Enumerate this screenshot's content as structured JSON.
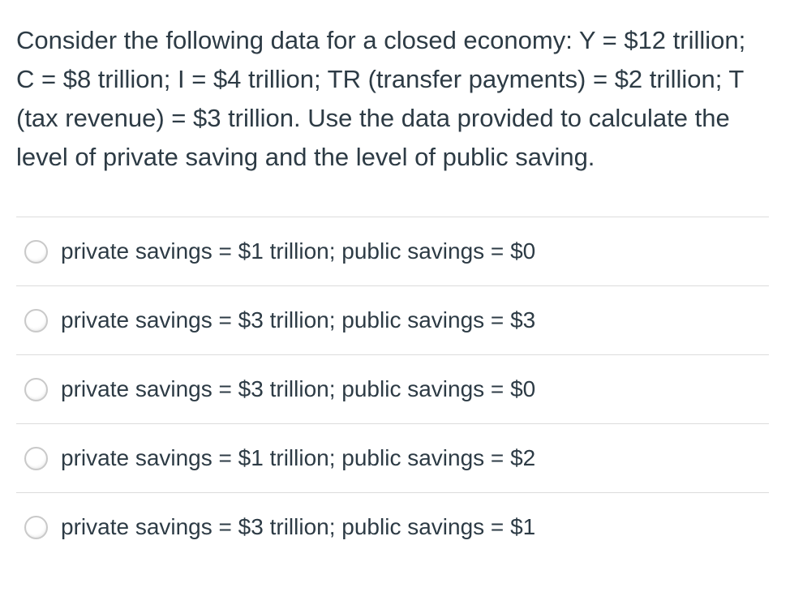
{
  "question": {
    "text": "Consider the following data for a closed economy: Y = $12 trillion; C = $8 trillion; I = $4 trillion; TR (transfer payments) = $2 trillion; T (tax revenue) = $3 trillion. Use the data provided to calculate the level of private saving and the level of public saving."
  },
  "answers": {
    "options": [
      {
        "label": "private savings = $1 trillion; public savings = $0",
        "selected": false
      },
      {
        "label": "private savings = $3 trillion; public savings = $3",
        "selected": false
      },
      {
        "label": "private savings = $3 trillion; public savings = $0",
        "selected": false
      },
      {
        "label": "private savings = $1 trillion; public savings = $2",
        "selected": false
      },
      {
        "label": "private savings = $3 trillion; public savings = $1",
        "selected": false
      }
    ]
  },
  "colors": {
    "text": "#2D3B45",
    "divider": "#dcdcdc",
    "radio_border": "#c9c9c9",
    "background": "#ffffff"
  }
}
